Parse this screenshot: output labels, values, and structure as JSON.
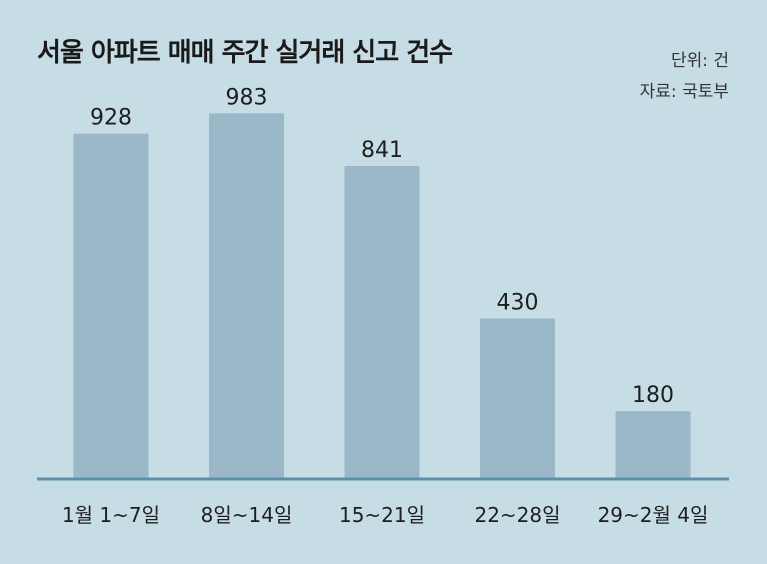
{
  "chart_data": {
    "type": "bar",
    "title": "서울 아파트 매매 주간 실거래 신고 건수",
    "unit_label": "단위: 건",
    "source_label": "자료: 국토부",
    "categories": [
      "1월 1~7일",
      "8일~14일",
      "15~21일",
      "22~28일",
      "29~2월 4일"
    ],
    "values": [
      928,
      983,
      841,
      430,
      180
    ],
    "ylim": [
      0,
      1000
    ],
    "grid": false,
    "bar_color": "#9ab8c8",
    "axis_color": "#5f8fa6",
    "background": "#c6dde6"
  }
}
